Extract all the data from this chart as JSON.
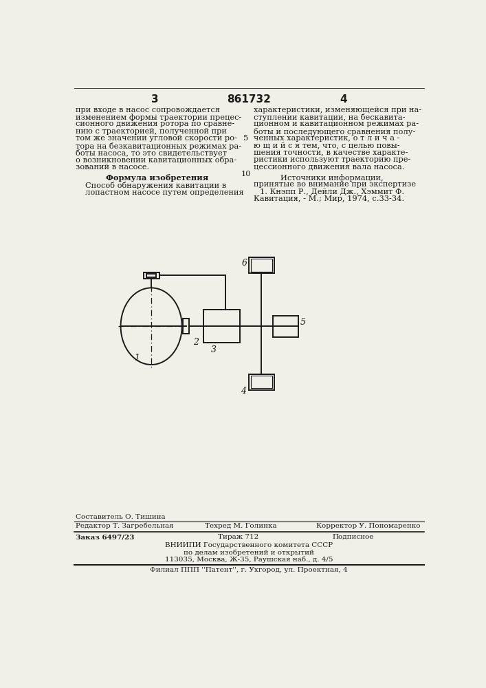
{
  "bg_color": "#f0efe8",
  "page_number_left": "3",
  "page_number_center": "861732",
  "page_number_right": "4",
  "left_col_text": [
    "при входе в насос сопровождается",
    "изменением формы траектории прецес-",
    "сионного движения ротора по сравне-",
    "нию с траекторией, полученной при",
    "том же значении угловой скорости ро-",
    "тора на безкавитационных режимах ра-",
    "боты насоса, то это свидетельствует",
    "о возникновении кавитационных обра-",
    "зований в насосе."
  ],
  "formula_header": "Формула изобретения",
  "formula_text": [
    "Способ обнаружения кавитации в",
    "лопастном насосе путем определения"
  ],
  "line_number_5": "5",
  "line_number_10": "10",
  "right_col_text": [
    "характеристики, изменяющейся при на-",
    "ступлении кавитации, на бескавита-",
    "ционном и кавитационном режимах ра-",
    "боты и последующего сравнения полу-",
    "ченных характеристик, о т л и ч а -",
    "ю щ и й с я тем, что, с целью повы-",
    "шения точности, в качестве характе-",
    "ристики используют траекторию пре-",
    "цессионного движения вала насоса."
  ],
  "sources_header": "Источники информации,",
  "sources_text_1": "принятые во внимание при экспертизе",
  "sources_text_2": "1. Кнэпп Р., Дейли Дж., Хэммит Ф.",
  "sources_text_3": "Кавитация, - М.; Мир, 1974, с.33-34.",
  "editor_line": "Редактор Т. Загребельная",
  "composer_line": "Составитель О. Тишина",
  "techred_line": "Техред М. Голинка",
  "corrector_line": "Корректор У. Пономаренко",
  "order_line": "Заказ 6497/23",
  "tirazh_line": "Тираж 712",
  "podpisnoe_line": "Подписное",
  "vniip_line1": "ВНИИПИ Государственного комитета СССР",
  "vniip_line2": "по делам изобретений и открытий",
  "vniip_line3": "113035, Москва, Ж-35, Раушская наб., д. 4/5",
  "filial_line": "Филиал ППП ''Патент'', г. Ухгород, ул. Проектная, 4",
  "diagram_label_1": "1",
  "diagram_label_2": "2",
  "diagram_label_3": "3",
  "diagram_label_4": "4",
  "diagram_label_5": "5",
  "diagram_label_6": "6"
}
